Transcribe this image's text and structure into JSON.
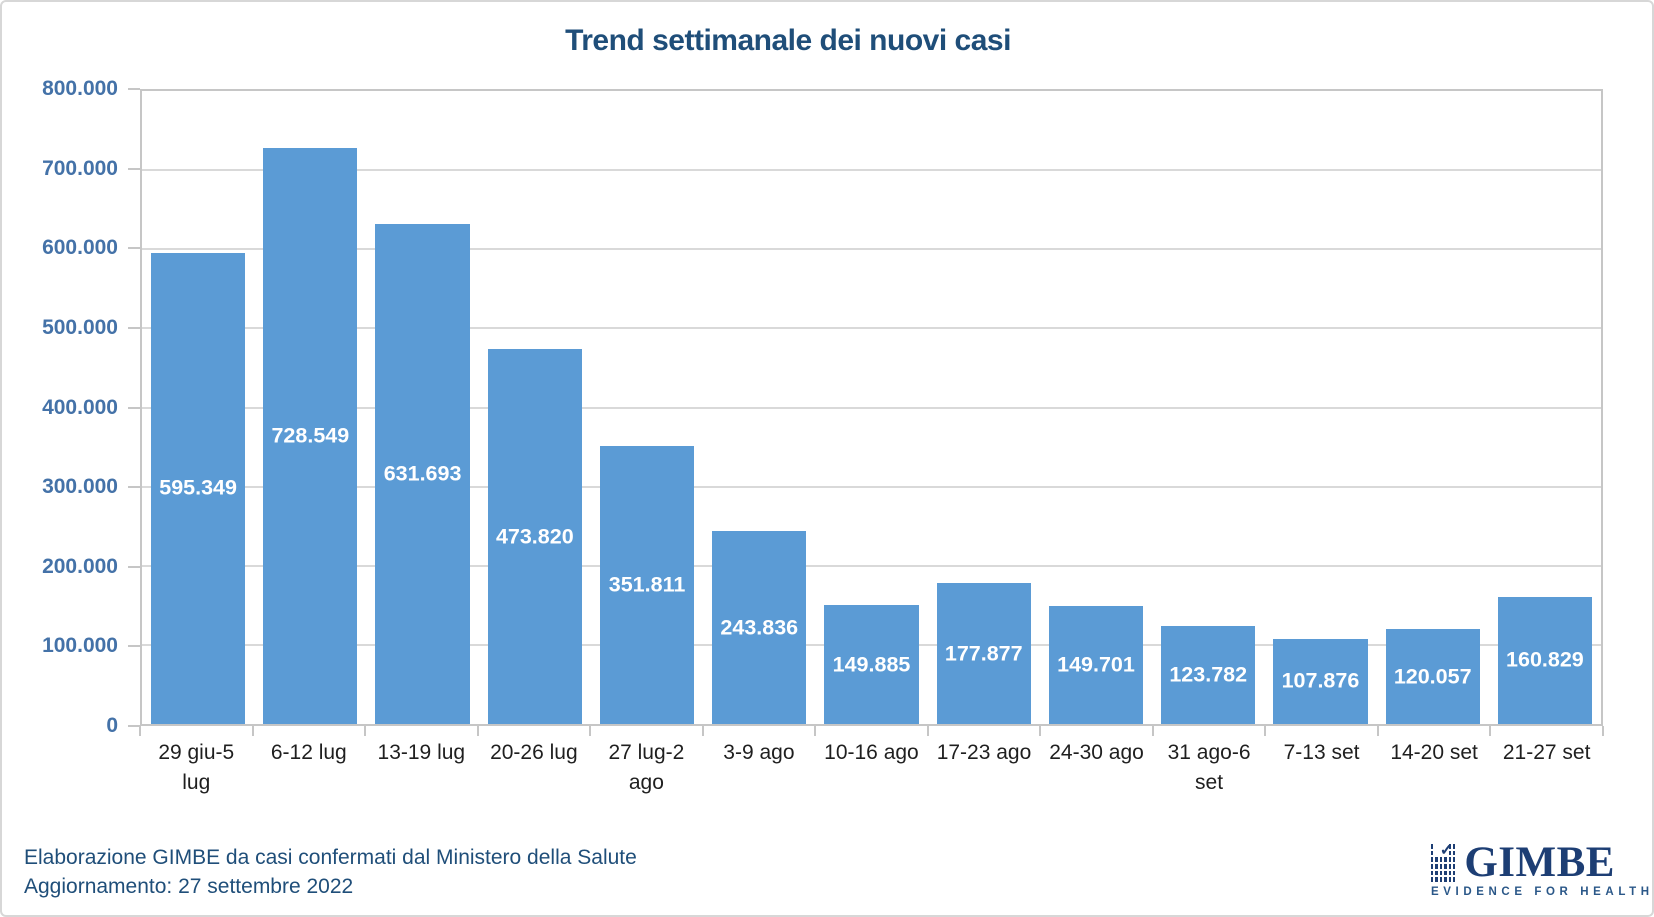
{
  "title": "Trend settimanale dei nuovi casi",
  "chart_data": {
    "type": "bar",
    "title": "Trend settimanale dei nuovi casi",
    "categories": [
      "29 giu-5 lug",
      "6-12 lug",
      "13-19 lug",
      "20-26 lug",
      "27 lug-2 ago",
      "3-9 ago",
      "10-16 ago",
      "17-23 ago",
      "24-30 ago",
      "31 ago-6 set",
      "7-13 set",
      "14-20 set",
      "21-27 set"
    ],
    "category_lines": [
      [
        "29 giu-5",
        "lug"
      ],
      [
        "6-12 lug"
      ],
      [
        "13-19 lug"
      ],
      [
        "20-26 lug"
      ],
      [
        "27 lug-2",
        "ago"
      ],
      [
        "3-9 ago"
      ],
      [
        "10-16 ago"
      ],
      [
        "17-23 ago"
      ],
      [
        "24-30 ago"
      ],
      [
        "31 ago-6",
        "set"
      ],
      [
        "7-13 set"
      ],
      [
        "14-20 set"
      ],
      [
        "21-27 set"
      ]
    ],
    "values": [
      595349,
      728549,
      631693,
      473820,
      351811,
      243836,
      149885,
      177877,
      149701,
      123782,
      107876,
      120057,
      160829
    ],
    "value_labels": [
      "595.349",
      "728.549",
      "631.693",
      "473.820",
      "351.811",
      "243.836",
      "149.885",
      "177.877",
      "149.701",
      "123.782",
      "107.876",
      "120.057",
      "160.829"
    ],
    "ylim": [
      0,
      800000
    ],
    "ytick_interval": 100000,
    "ytick_labels": [
      "800.000",
      "700.000",
      "600.000",
      "500.000",
      "400.000",
      "300.000",
      "200.000",
      "100.000",
      "0"
    ],
    "grid": true,
    "legend": "none",
    "data_label_position": "inside-center"
  },
  "colors": {
    "bar": "#5B9BD5",
    "title_text": "#1F4E79",
    "y_axis_labels": "#4472A8",
    "x_axis_labels": "#1F1F1F",
    "gridline": "#D9D9D9",
    "plot_border": "#C6C6C6",
    "data_label": "#FFFFFF",
    "footer_text": "#1F4E79",
    "logo_navy": "#1D3E74"
  },
  "footer": {
    "line1": "Elaborazione GIMBE da casi confermati dal Ministero della Salute",
    "line2": "Aggiornamento: 27 settembre 2022"
  },
  "logo": {
    "wordmark": "GIMBE",
    "tagline": "EVIDENCE FOR HEALTH",
    "check_glyph": "✓"
  }
}
